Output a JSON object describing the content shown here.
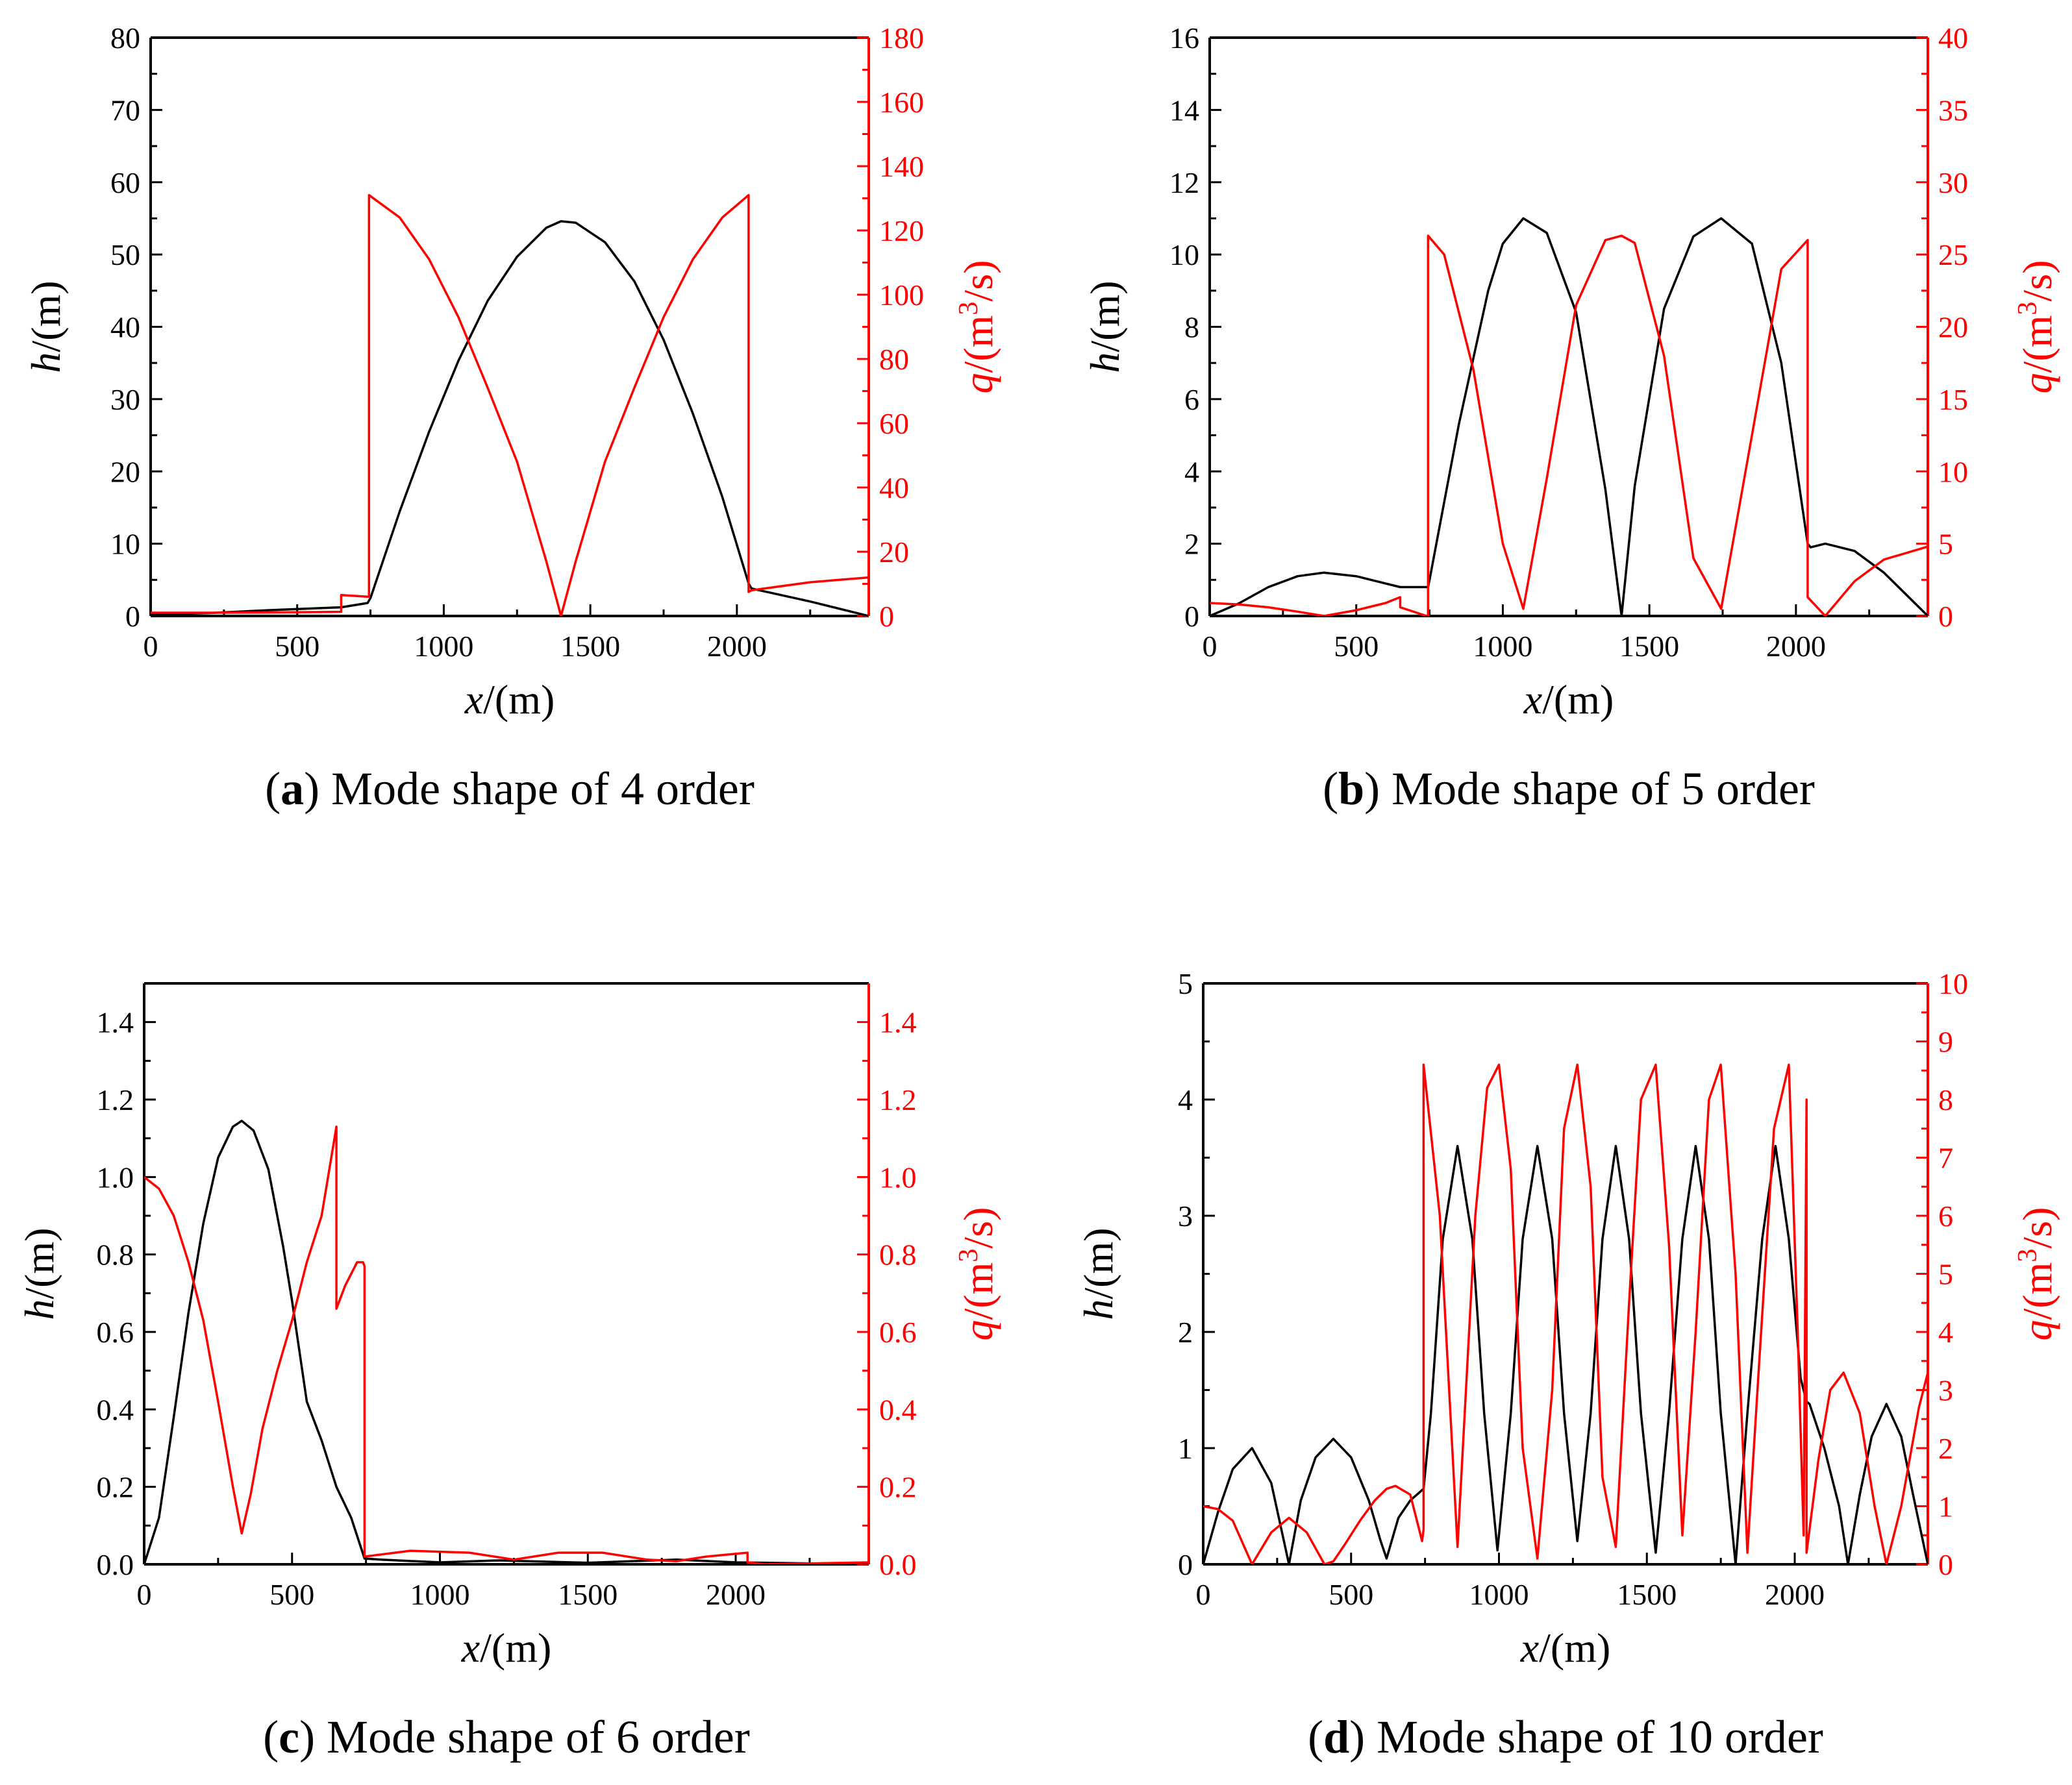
{
  "figure": {
    "colors": {
      "h": "#000000",
      "q": "#ff0000",
      "axis": "#000000"
    },
    "panels": [
      {
        "caption_letter": "a",
        "caption_text": " Mode shape of 4 order"
      },
      {
        "caption_letter": "b",
        "caption_text": " Mode shape of 5 order"
      },
      {
        "caption_letter": "c",
        "caption_text": " Mode shape of 6 order"
      },
      {
        "caption_letter": "d",
        "caption_text": " Mode shape of 10 order"
      }
    ]
  },
  "chart_data": [
    {
      "type": "line",
      "title": "(a) Mode shape of 4 order",
      "xlabel": "x/(m)",
      "ylabel_left": "h/(m)",
      "ylabel_right": "q/(m3/s)",
      "xlim": [
        0,
        2450
      ],
      "ylim_left": [
        0,
        80
      ],
      "ylim_right": [
        0,
        180
      ],
      "xticks": [
        "0",
        "500",
        "1000",
        "1500",
        "2000"
      ],
      "yticks_left": [
        "0",
        "10",
        "20",
        "30",
        "40",
        "50",
        "60",
        "70",
        "80"
      ],
      "yticks_right": [
        "0",
        "20",
        "40",
        "60",
        "80",
        "100",
        "120",
        "140",
        "160",
        "180"
      ],
      "series": [
        {
          "name": "h",
          "axis": "left",
          "color": "#000000",
          "x": [
            0,
            200,
            400,
            650,
            740,
            750,
            850,
            950,
            1050,
            1150,
            1250,
            1350,
            1400,
            1450,
            1550,
            1650,
            1750,
            1850,
            1950,
            2040,
            2050,
            2250,
            2450
          ],
          "y": [
            0.2,
            0.4,
            0.8,
            1.2,
            1.8,
            2.5,
            14.5,
            25.5,
            35.3,
            43.6,
            49.7,
            53.7,
            54.6,
            54.4,
            51.7,
            46.3,
            38.2,
            28.0,
            16.5,
            4.5,
            3.8,
            2.0,
            0.0
          ]
        },
        {
          "name": "q",
          "axis": "right",
          "color": "#ff0000",
          "x": [
            0,
            200,
            400,
            650,
            650,
            740,
            745,
            745,
            850,
            950,
            1050,
            1150,
            1250,
            1350,
            1400,
            1450,
            1550,
            1650,
            1750,
            1850,
            1950,
            2040,
            2040,
            2050,
            2250,
            2450
          ],
          "y": [
            1.0,
            1.0,
            1.1,
            1.3,
            6.5,
            6.0,
            6.0,
            131,
            124,
            111,
            93,
            71,
            48,
            17,
            0,
            17,
            48,
            71,
            93,
            111,
            124,
            131,
            7.5,
            8.0,
            10.5,
            12.0
          ]
        }
      ]
    },
    {
      "type": "line",
      "title": "(b) Mode shape of 5 order",
      "xlabel": "x/(m)",
      "ylabel_left": "h/(m)",
      "ylabel_right": "q/(m3/s)",
      "xlim": [
        0,
        2450
      ],
      "ylim_left": [
        0,
        16
      ],
      "ylim_right": [
        0,
        40
      ],
      "xticks": [
        "0",
        "500",
        "1000",
        "1500",
        "2000"
      ],
      "yticks_left": [
        "0",
        "2",
        "4",
        "6",
        "8",
        "10",
        "12",
        "14",
        "16"
      ],
      "yticks_right": [
        "0",
        "5",
        "10",
        "15",
        "20",
        "25",
        "30",
        "35",
        "40"
      ],
      "series": [
        {
          "name": "h",
          "axis": "left",
          "color": "#000000",
          "x": [
            0,
            100,
            200,
            300,
            390,
            500,
            600,
            650,
            700,
            745,
            750,
            850,
            950,
            1000,
            1070,
            1150,
            1250,
            1350,
            1405,
            1450,
            1550,
            1650,
            1745,
            1850,
            1950,
            2040,
            2050,
            2100,
            2200,
            2300,
            2450
          ],
          "y": [
            0,
            0.35,
            0.8,
            1.1,
            1.2,
            1.1,
            0.9,
            0.8,
            0.8,
            0.8,
            1.0,
            5.3,
            9.0,
            10.3,
            11.0,
            10.6,
            8.4,
            3.5,
            0.0,
            3.6,
            8.5,
            10.5,
            11.0,
            10.3,
            7.0,
            2.0,
            1.9,
            2.0,
            1.8,
            1.2,
            0.0
          ]
        },
        {
          "name": "q",
          "axis": "right",
          "color": "#ff0000",
          "x": [
            0,
            100,
            200,
            300,
            390,
            500,
            600,
            650,
            650,
            740,
            745,
            745,
            800,
            900,
            1000,
            1070,
            1150,
            1250,
            1350,
            1405,
            1450,
            1550,
            1650,
            1745,
            1850,
            1950,
            2040,
            2040,
            2100,
            2200,
            2300,
            2450
          ],
          "y": [
            0.9,
            0.8,
            0.6,
            0.3,
            0.0,
            0.4,
            0.9,
            1.3,
            0.6,
            0.0,
            0.0,
            26.3,
            25.0,
            17.0,
            5.0,
            0.5,
            9.5,
            21.5,
            26.0,
            26.3,
            25.8,
            18.0,
            4.0,
            0.5,
            12.5,
            24.0,
            26.0,
            1.3,
            0.0,
            2.4,
            3.9,
            4.8
          ]
        }
      ]
    },
    {
      "type": "line",
      "title": "(c) Mode shape of 6 order",
      "xlabel": "x/(m)",
      "ylabel_left": "h/(m)",
      "ylabel_right": "q/(m3/s)",
      "xlim": [
        0,
        2450
      ],
      "ylim_left": [
        0,
        1.5
      ],
      "ylim_right": [
        0,
        1.5
      ],
      "xticks": [
        "0",
        "500",
        "1000",
        "1500",
        "2000"
      ],
      "yticks_left": [
        "0.0",
        "0.2",
        "0.4",
        "0.6",
        "0.8",
        "1.0",
        "1.2",
        "1.4"
      ],
      "yticks_right": [
        "0.0",
        "0.2",
        "0.4",
        "0.6",
        "0.8",
        "1.0",
        "1.2",
        "1.4"
      ],
      "series": [
        {
          "name": "h",
          "axis": "left",
          "color": "#000000",
          "x": [
            0,
            50,
            100,
            150,
            200,
            250,
            300,
            330,
            370,
            420,
            470,
            500,
            550,
            600,
            650,
            700,
            745,
            800,
            1000,
            1200,
            1500,
            1800,
            2000,
            2450
          ],
          "y": [
            0.0,
            0.12,
            0.38,
            0.65,
            0.88,
            1.05,
            1.13,
            1.145,
            1.12,
            1.02,
            0.82,
            0.68,
            0.42,
            0.32,
            0.2,
            0.12,
            0.015,
            0.012,
            0.005,
            0.01,
            0.004,
            0.012,
            0.005,
            0.0
          ]
        },
        {
          "name": "q",
          "axis": "right",
          "color": "#ff0000",
          "x": [
            0,
            50,
            100,
            150,
            200,
            250,
            300,
            330,
            360,
            400,
            450,
            500,
            550,
            600,
            650,
            650,
            680,
            720,
            740,
            745,
            745,
            900,
            1100,
            1250,
            1400,
            1550,
            1700,
            1800,
            1900,
            2040,
            2040,
            2100,
            2300,
            2450
          ],
          "y": [
            1.0,
            0.97,
            0.9,
            0.78,
            0.63,
            0.42,
            0.2,
            0.08,
            0.18,
            0.35,
            0.5,
            0.63,
            0.78,
            0.9,
            1.13,
            0.66,
            0.72,
            0.78,
            0.78,
            0.77,
            0.02,
            0.035,
            0.03,
            0.012,
            0.03,
            0.03,
            0.012,
            0.008,
            0.02,
            0.03,
            0.005,
            0.0,
            0.003,
            0.005
          ]
        }
      ]
    },
    {
      "type": "line",
      "title": "(d) Mode shape of 10 order",
      "xlabel": "x/(m)",
      "ylabel_left": "h/(m)",
      "ylabel_right": "q/(m3/s)",
      "xlim": [
        0,
        2450
      ],
      "ylim_left": [
        0,
        5
      ],
      "ylim_right": [
        0,
        10
      ],
      "xticks": [
        "0",
        "500",
        "1000",
        "1500",
        "2000"
      ],
      "yticks_left": [
        "0",
        "1",
        "2",
        "3",
        "4",
        "5"
      ],
      "yticks_right": [
        "0",
        "1",
        "2",
        "3",
        "4",
        "5",
        "6",
        "7",
        "8",
        "9",
        "10"
      ],
      "series": [
        {
          "name": "h",
          "axis": "left",
          "color": "#000000",
          "x": [
            0,
            50,
            100,
            165,
            230,
            290,
            330,
            380,
            440,
            500,
            560,
            600,
            620,
            660,
            700,
            745,
            770,
            810,
            860,
            910,
            950,
            995,
            1040,
            1080,
            1130,
            1180,
            1220,
            1265,
            1310,
            1350,
            1395,
            1440,
            1480,
            1530,
            1575,
            1620,
            1665,
            1710,
            1750,
            1800,
            1840,
            1890,
            1935,
            1980,
            2020,
            2040,
            2050,
            2100,
            2150,
            2180,
            2220,
            2260,
            2310,
            2360,
            2400,
            2450
          ],
          "y": [
            0,
            0.45,
            0.82,
            1.0,
            0.7,
            0.0,
            0.55,
            0.92,
            1.08,
            0.92,
            0.55,
            0.2,
            0.05,
            0.4,
            0.55,
            0.65,
            1.3,
            2.8,
            3.6,
            2.8,
            1.3,
            0.12,
            1.3,
            2.8,
            3.6,
            2.8,
            1.3,
            0.2,
            1.3,
            2.8,
            3.6,
            2.8,
            1.3,
            0.1,
            1.3,
            2.8,
            3.6,
            2.8,
            1.3,
            0.0,
            1.3,
            2.8,
            3.6,
            2.8,
            1.6,
            1.4,
            1.38,
            1.0,
            0.5,
            0.0,
            0.6,
            1.1,
            1.38,
            1.1,
            0.6,
            0.0
          ]
        },
        {
          "name": "q",
          "axis": "right",
          "color": "#ff0000",
          "x": [
            0,
            50,
            100,
            165,
            230,
            290,
            350,
            410,
            440,
            480,
            530,
            580,
            620,
            650,
            700,
            740,
            745,
            745,
            800,
            860,
            920,
            960,
            1000,
            1040,
            1080,
            1130,
            1180,
            1220,
            1265,
            1310,
            1350,
            1395,
            1440,
            1480,
            1530,
            1575,
            1620,
            1665,
            1710,
            1750,
            1800,
            1840,
            1880,
            1930,
            1980,
            2010,
            2030,
            2040,
            2040,
            2080,
            2120,
            2165,
            2220,
            2270,
            2310,
            2360,
            2420,
            2450
          ],
          "y": [
            1.0,
            0.95,
            0.75,
            0.0,
            0.55,
            0.8,
            0.55,
            0.0,
            0.05,
            0.35,
            0.75,
            1.1,
            1.3,
            1.35,
            1.2,
            0.4,
            0.6,
            8.6,
            6.0,
            0.3,
            6.0,
            8.2,
            8.6,
            6.8,
            2.0,
            0.1,
            3.0,
            7.5,
            8.6,
            6.5,
            1.5,
            0.3,
            4.5,
            8.0,
            8.6,
            5.5,
            0.5,
            4.0,
            8.0,
            8.6,
            5.0,
            0.2,
            3.5,
            7.5,
            8.6,
            4.0,
            0.5,
            8.0,
            0.2,
            1.8,
            3.0,
            3.3,
            2.6,
            1.0,
            0.0,
            1.0,
            2.7,
            3.3
          ]
        }
      ]
    }
  ]
}
